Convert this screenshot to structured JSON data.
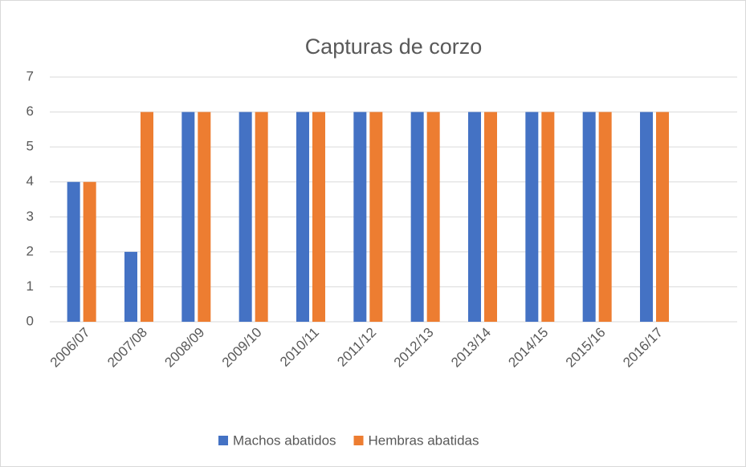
{
  "chart_data": {
    "type": "bar",
    "title": "Capturas de corzo",
    "categories": [
      "2006/07",
      "2007/08",
      "2008/09",
      "2009/10",
      "2010/11",
      "2011/12",
      "2012/13",
      "2013/14",
      "2014/15",
      "2015/16",
      "2016/17",
      null
    ],
    "series": [
      {
        "name": "Machos abatidos",
        "color": "#4472c4",
        "values": [
          4,
          2,
          6,
          6,
          6,
          6,
          6,
          6,
          6,
          6,
          6,
          null
        ]
      },
      {
        "name": "Hembras abatidas",
        "color": "#ed7d31",
        "values": [
          4,
          6,
          6,
          6,
          6,
          6,
          6,
          6,
          6,
          6,
          6,
          null
        ]
      }
    ],
    "ylim": [
      0,
      7
    ],
    "yticks": [
      0,
      1,
      2,
      3,
      4,
      5,
      6,
      7
    ],
    "grid": true,
    "legend": "bottom"
  }
}
